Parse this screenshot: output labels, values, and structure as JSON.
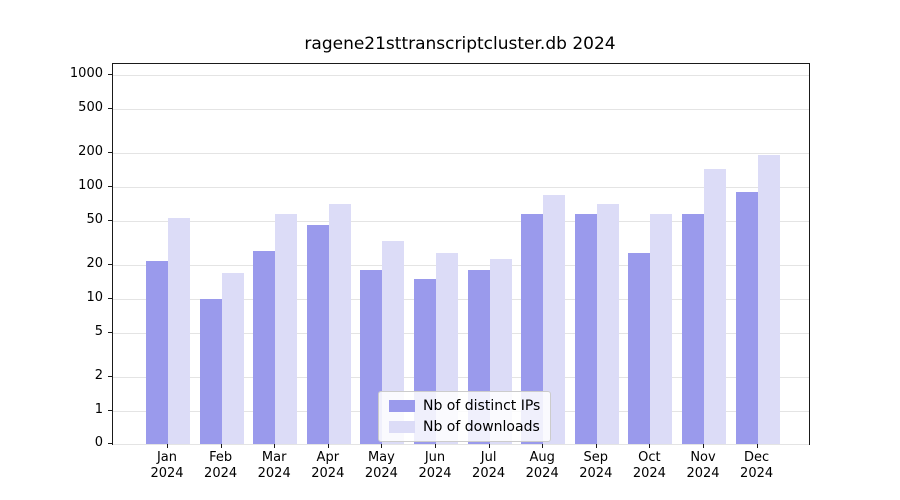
{
  "chart_data": {
    "type": "bar",
    "title": "ragene21sttranscriptcluster.db 2024",
    "year": "2024",
    "categories": [
      "Jan",
      "Feb",
      "Mar",
      "Apr",
      "May",
      "Jun",
      "Jul",
      "Aug",
      "Sep",
      "Oct",
      "Nov",
      "Dec"
    ],
    "series": [
      {
        "name": "Nb of distinct IPs",
        "color": "#9a9aec",
        "values": [
          22,
          10,
          27,
          46,
          18,
          15,
          18,
          58,
          58,
          26,
          58,
          90
        ]
      },
      {
        "name": "Nb of downloads",
        "color": "#dcdcf7",
        "values": [
          53,
          17,
          58,
          70,
          33,
          26,
          23,
          84,
          70,
          57,
          145,
          192
        ]
      }
    ],
    "yticks": [
      0,
      1,
      2,
      5,
      10,
      20,
      50,
      100,
      200,
      500,
      1000
    ],
    "yscale": "log",
    "ylim": [
      0,
      1000
    ],
    "grid": true,
    "legend_position": "lower center"
  }
}
